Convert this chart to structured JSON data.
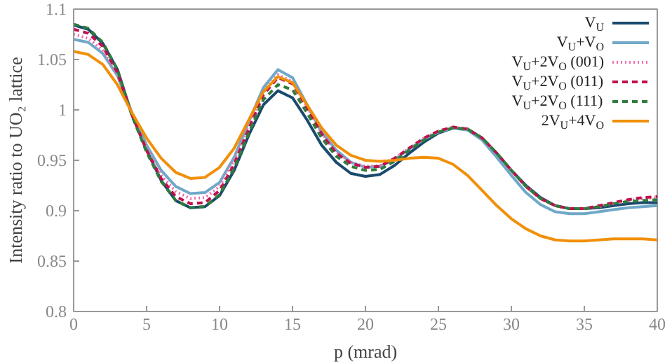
{
  "chart_data": {
    "type": "line",
    "xlabel": "p (mrad)",
    "ylabel": "Intensity ratio to UO₂ lattice",
    "x": [
      0,
      1,
      2,
      3,
      4,
      5,
      6,
      7,
      8,
      9,
      10,
      11,
      12,
      13,
      14,
      15,
      16,
      17,
      18,
      19,
      20,
      21,
      22,
      23,
      24,
      25,
      26,
      27,
      28,
      29,
      30,
      31,
      32,
      33,
      34,
      35,
      36,
      37,
      38,
      39,
      40
    ],
    "xlim": [
      0,
      40
    ],
    "xticks": [
      0,
      5,
      10,
      15,
      20,
      25,
      30,
      35,
      40
    ],
    "ylim": [
      0.8,
      1.1
    ],
    "yticks": [
      0.8,
      0.85,
      0.9,
      0.95,
      1,
      1.05,
      1.1
    ],
    "grid": false,
    "legend": "top right",
    "marker": "none",
    "series": [
      {
        "name": "V$_{U}$",
        "color": "#1a4a6e",
        "line_style": "solid",
        "values": [
          1.084,
          1.08,
          1.066,
          1.04,
          0.995,
          0.96,
          0.93,
          0.91,
          0.903,
          0.904,
          0.915,
          0.94,
          0.975,
          1.005,
          1.019,
          1.012,
          0.99,
          0.965,
          0.948,
          0.937,
          0.934,
          0.936,
          0.945,
          0.957,
          0.968,
          0.977,
          0.982,
          0.981,
          0.972,
          0.957,
          0.94,
          0.925,
          0.913,
          0.905,
          0.902,
          0.902,
          0.903,
          0.905,
          0.907,
          0.908,
          0.908
        ]
      },
      {
        "name": "V$_{U}$+V$_{O}$",
        "color": "#6fa8c8",
        "line_style": "solid",
        "values": [
          1.07,
          1.067,
          1.056,
          1.034,
          0.997,
          0.965,
          0.94,
          0.924,
          0.917,
          0.918,
          0.928,
          0.953,
          0.988,
          1.022,
          1.04,
          1.032,
          1.005,
          0.978,
          0.96,
          0.948,
          0.943,
          0.944,
          0.951,
          0.961,
          0.971,
          0.978,
          0.982,
          0.98,
          0.97,
          0.953,
          0.935,
          0.918,
          0.906,
          0.899,
          0.897,
          0.897,
          0.899,
          0.901,
          0.903,
          0.904,
          0.905
        ]
      },
      {
        "name": "V$_{U}$+2V$_{O}$ (001)",
        "color": "#f06bb0",
        "line_style": "dotted",
        "values": [
          1.075,
          1.071,
          1.059,
          1.035,
          0.996,
          0.962,
          0.935,
          0.919,
          0.912,
          0.913,
          0.924,
          0.95,
          0.985,
          1.018,
          1.035,
          1.028,
          1.003,
          0.977,
          0.958,
          0.948,
          0.944,
          0.945,
          0.952,
          0.962,
          0.972,
          0.979,
          0.983,
          0.981,
          0.972,
          0.957,
          0.94,
          0.924,
          0.912,
          0.905,
          0.902,
          0.902,
          0.904,
          0.907,
          0.91,
          0.912,
          0.913
        ]
      },
      {
        "name": "V$_{U}$+2V$_{O}$ (011)",
        "color": "#c0104a",
        "line_style": "dashed",
        "values": [
          1.08,
          1.076,
          1.063,
          1.037,
          0.995,
          0.96,
          0.932,
          0.914,
          0.907,
          0.908,
          0.92,
          0.946,
          0.981,
          1.015,
          1.032,
          1.026,
          1.002,
          0.976,
          0.957,
          0.947,
          0.943,
          0.944,
          0.952,
          0.962,
          0.972,
          0.979,
          0.983,
          0.981,
          0.972,
          0.957,
          0.94,
          0.924,
          0.912,
          0.905,
          0.902,
          0.902,
          0.905,
          0.908,
          0.911,
          0.913,
          0.914
        ]
      },
      {
        "name": "V$_{U}$+2V$_{O}$ (111)",
        "color": "#2e7d3a",
        "line_style": "dashed",
        "values": [
          1.085,
          1.081,
          1.067,
          1.04,
          0.994,
          0.958,
          0.929,
          0.91,
          0.903,
          0.904,
          0.916,
          0.942,
          0.977,
          1.01,
          1.025,
          1.02,
          0.997,
          0.972,
          0.954,
          0.944,
          0.94,
          0.941,
          0.949,
          0.96,
          0.97,
          0.978,
          0.982,
          0.981,
          0.972,
          0.957,
          0.94,
          0.924,
          0.912,
          0.905,
          0.902,
          0.902,
          0.904,
          0.907,
          0.909,
          0.91,
          0.911
        ]
      },
      {
        "name": "2V$_{U}$+4V$_{O}$",
        "color": "#f0900a",
        "line_style": "solid",
        "values": [
          1.058,
          1.055,
          1.045,
          1.025,
          0.997,
          0.972,
          0.952,
          0.938,
          0.932,
          0.933,
          0.943,
          0.962,
          0.99,
          1.018,
          1.033,
          1.027,
          1.005,
          0.982,
          0.965,
          0.955,
          0.95,
          0.949,
          0.95,
          0.952,
          0.953,
          0.952,
          0.946,
          0.935,
          0.92,
          0.905,
          0.892,
          0.882,
          0.875,
          0.871,
          0.87,
          0.87,
          0.871,
          0.872,
          0.872,
          0.872,
          0.871
        ]
      }
    ]
  }
}
